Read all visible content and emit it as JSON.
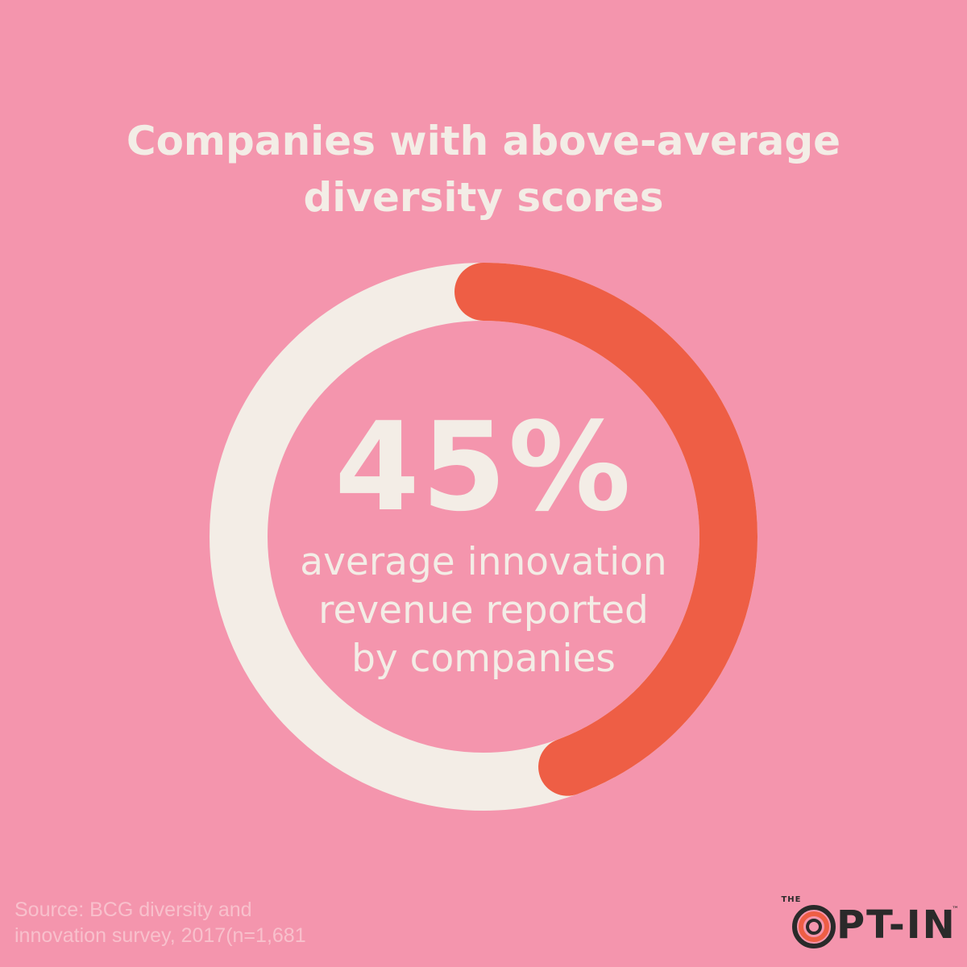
{
  "title_lines": [
    "Companies with above-average",
    "diversity scores"
  ],
  "chart_data": {
    "type": "pie",
    "variant": "donut",
    "values": [
      45,
      55
    ],
    "value_label": "45%",
    "caption_lines": [
      "average innovation",
      "revenue reported",
      "by companies"
    ],
    "colors": [
      "#EE5E45",
      "#F3EDE6"
    ]
  },
  "source_lines": [
    "Source: BCG diversity and",
    "innovation survey, 2017(n=1,681"
  ],
  "logo": {
    "the": "THE",
    "text": "PT-IN",
    "tm": "™"
  },
  "colors": {
    "background": "#F495AD",
    "highlight": "#EE5E45",
    "light": "#F3EDE6"
  },
  "icons": {
    "logo_mark": "opt-in-logo-icon"
  }
}
